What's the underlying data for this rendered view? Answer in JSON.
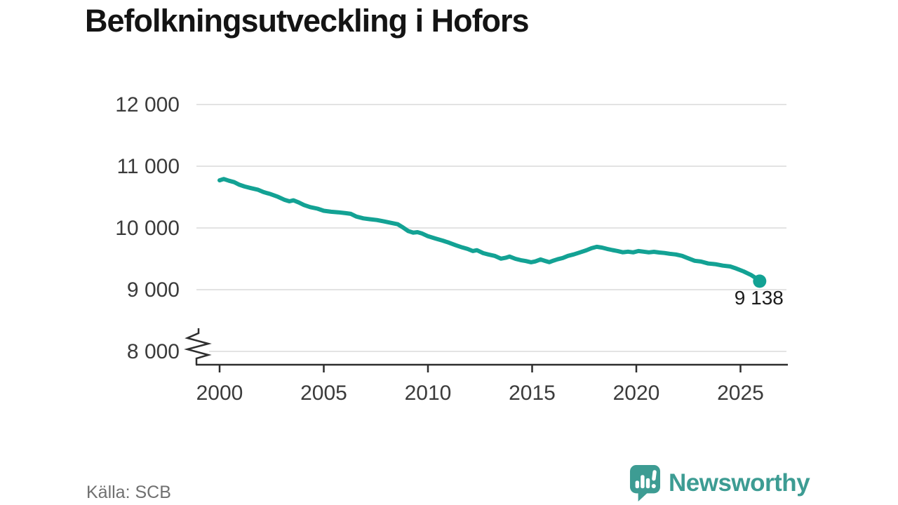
{
  "header": {
    "title": "Befolkningsutveckling i Hofors"
  },
  "footer": {
    "source": "Källa: SCB",
    "brand": "Newsworthy",
    "brand_color": "#3d9c93",
    "brand_icon": "bar-chart-speech-bubble-icon"
  },
  "chart_data": {
    "type": "line",
    "title": "Befolkningsutveckling i Hofors",
    "xlabel": "",
    "ylabel": "",
    "grid": true,
    "legend": "none",
    "y_axis_break": true,
    "line_color": "#13a294",
    "grid_color": "#e3e3e3",
    "axis_color": "#2e2e2e",
    "tick_text_color": "#3b3b3b",
    "end_label_color": "#1c1c1c",
    "end_label": "9 138",
    "end_value": 9138,
    "xlim": [
      1998.9,
      2027.3
    ],
    "ylim_shown": [
      8000,
      12000
    ],
    "x_ticks": [
      {
        "value": 2000,
        "label": "2000"
      },
      {
        "value": 2005,
        "label": "2005"
      },
      {
        "value": 2010,
        "label": "2010"
      },
      {
        "value": 2015,
        "label": "2015"
      },
      {
        "value": 2020,
        "label": "2020"
      },
      {
        "value": 2025,
        "label": "2025"
      }
    ],
    "y_ticks": [
      {
        "value": 12000,
        "label": "12 000"
      },
      {
        "value": 11000,
        "label": "11 000"
      },
      {
        "value": 10000,
        "label": "10 000"
      },
      {
        "value": 9000,
        "label": "9 000"
      },
      {
        "value": 8000,
        "label": "8 000"
      }
    ],
    "points": [
      [
        2000.0,
        10772
      ],
      [
        2000.2,
        10793
      ],
      [
        2000.45,
        10765
      ],
      [
        2000.7,
        10742
      ],
      [
        2000.95,
        10700
      ],
      [
        2001.2,
        10672
      ],
      [
        2001.5,
        10645
      ],
      [
        2001.85,
        10618
      ],
      [
        2002.1,
        10582
      ],
      [
        2002.45,
        10548
      ],
      [
        2002.8,
        10505
      ],
      [
        2003.1,
        10458
      ],
      [
        2003.35,
        10432
      ],
      [
        2003.55,
        10448
      ],
      [
        2003.8,
        10412
      ],
      [
        2004.05,
        10372
      ],
      [
        2004.35,
        10338
      ],
      [
        2004.7,
        10312
      ],
      [
        2005.0,
        10278
      ],
      [
        2005.35,
        10263
      ],
      [
        2005.7,
        10253
      ],
      [
        2006.05,
        10240
      ],
      [
        2006.3,
        10228
      ],
      [
        2006.55,
        10186
      ],
      [
        2006.9,
        10156
      ],
      [
        2007.2,
        10142
      ],
      [
        2007.55,
        10128
      ],
      [
        2007.9,
        10106
      ],
      [
        2008.2,
        10084
      ],
      [
        2008.55,
        10060
      ],
      [
        2008.8,
        10008
      ],
      [
        2009.05,
        9950
      ],
      [
        2009.3,
        9924
      ],
      [
        2009.5,
        9932
      ],
      [
        2009.7,
        9912
      ],
      [
        2010.0,
        9866
      ],
      [
        2010.35,
        9830
      ],
      [
        2010.7,
        9796
      ],
      [
        2011.0,
        9762
      ],
      [
        2011.35,
        9718
      ],
      [
        2011.65,
        9684
      ],
      [
        2011.9,
        9660
      ],
      [
        2012.15,
        9626
      ],
      [
        2012.35,
        9640
      ],
      [
        2012.65,
        9592
      ],
      [
        2012.9,
        9570
      ],
      [
        2013.2,
        9548
      ],
      [
        2013.5,
        9502
      ],
      [
        2013.72,
        9516
      ],
      [
        2013.92,
        9536
      ],
      [
        2014.2,
        9500
      ],
      [
        2014.45,
        9478
      ],
      [
        2014.7,
        9464
      ],
      [
        2014.95,
        9444
      ],
      [
        2015.15,
        9458
      ],
      [
        2015.4,
        9490
      ],
      [
        2015.62,
        9466
      ],
      [
        2015.82,
        9446
      ],
      [
        2016.02,
        9470
      ],
      [
        2016.22,
        9492
      ],
      [
        2016.47,
        9514
      ],
      [
        2016.72,
        9548
      ],
      [
        2017.0,
        9572
      ],
      [
        2017.3,
        9604
      ],
      [
        2017.6,
        9638
      ],
      [
        2017.85,
        9672
      ],
      [
        2018.1,
        9694
      ],
      [
        2018.35,
        9682
      ],
      [
        2018.6,
        9660
      ],
      [
        2018.85,
        9642
      ],
      [
        2019.1,
        9626
      ],
      [
        2019.35,
        9606
      ],
      [
        2019.6,
        9616
      ],
      [
        2019.85,
        9604
      ],
      [
        2020.1,
        9626
      ],
      [
        2020.35,
        9616
      ],
      [
        2020.6,
        9604
      ],
      [
        2020.85,
        9614
      ],
      [
        2021.1,
        9602
      ],
      [
        2021.35,
        9594
      ],
      [
        2021.6,
        9582
      ],
      [
        2021.9,
        9570
      ],
      [
        2022.2,
        9548
      ],
      [
        2022.45,
        9514
      ],
      [
        2022.8,
        9468
      ],
      [
        2023.1,
        9456
      ],
      [
        2023.45,
        9424
      ],
      [
        2023.8,
        9412
      ],
      [
        2024.15,
        9390
      ],
      [
        2024.5,
        9376
      ],
      [
        2024.8,
        9342
      ],
      [
        2025.15,
        9296
      ],
      [
        2025.5,
        9240
      ],
      [
        2025.75,
        9184
      ],
      [
        2025.92,
        9138
      ]
    ]
  }
}
